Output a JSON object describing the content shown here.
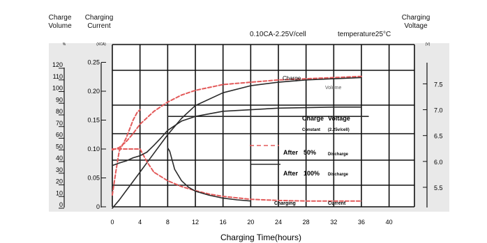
{
  "header": {
    "left_axis_1": "Charge Volume",
    "left_axis_2": "Charging Current",
    "right_axis": "Charging Voltage",
    "condition": "0.10CA-2.25V/cell",
    "temperature": "temperature25°C",
    "unit_volume": "%",
    "unit_current": "(XCA)",
    "unit_voltage": "(V)"
  },
  "chart_data": {
    "type": "line",
    "xlabel": "Charging Time(hours)",
    "x_ticks": [
      0,
      4,
      8,
      12,
      16,
      20,
      24,
      28,
      32,
      36,
      40
    ],
    "xlim": [
      0,
      40
    ],
    "y_volume": {
      "label": "Charge Volume",
      "ticks": [
        0,
        10,
        20,
        30,
        40,
        50,
        60,
        70,
        80,
        90,
        100,
        110,
        120
      ],
      "ylim": [
        0,
        130
      ]
    },
    "y_current": {
      "label": "Charging Current",
      "ticks": [
        0,
        0.05,
        0.1,
        0.15,
        0.2,
        0.25
      ],
      "ylim": [
        0,
        0.27
      ]
    },
    "y_voltage": {
      "label": "Charging Voltage",
      "ticks": [
        5.5,
        6.0,
        6.5,
        7.0,
        7.5
      ],
      "ylim": [
        5.0,
        7.75
      ]
    },
    "grid": true,
    "series": [
      {
        "name": "Charge Volume (after 50% discharge)",
        "axis": "volume",
        "style": "dashed",
        "color": "#e35a5a",
        "x": [
          0,
          1,
          2,
          3,
          4,
          6,
          8,
          10,
          12,
          16,
          20,
          24,
          28,
          32,
          36
        ],
        "y": [
          50,
          52,
          57,
          64,
          72,
          83,
          91,
          97,
          101,
          106,
          108,
          110,
          111,
          112,
          113
        ]
      },
      {
        "name": "Charge Volume (after 100% discharge)",
        "axis": "volume",
        "style": "solid",
        "color": "#2a2a2a",
        "x": [
          0,
          1,
          2,
          3,
          4,
          5,
          6,
          7,
          8,
          10,
          12,
          16,
          20,
          24,
          28,
          32,
          36
        ],
        "y": [
          0,
          7,
          15,
          23,
          31,
          39,
          47,
          55,
          63,
          77,
          88,
          99,
          105,
          108,
          110,
          111,
          112
        ]
      },
      {
        "name": "Charging Current (after 50% discharge)",
        "axis": "current",
        "style": "dashed",
        "color": "#e35a5a",
        "x": [
          0,
          1,
          2,
          3,
          4,
          5,
          6,
          8,
          10,
          12,
          14,
          16,
          20,
          24,
          28,
          32,
          36
        ],
        "y": [
          0.1,
          0.1,
          0.1,
          0.1,
          0.1,
          0.078,
          0.06,
          0.045,
          0.035,
          0.028,
          0.022,
          0.018,
          0.013,
          0.011,
          0.01,
          0.01,
          0.01
        ]
      },
      {
        "name": "Charging Current (after 100% discharge)",
        "axis": "current",
        "style": "solid",
        "color": "#2a2a2a",
        "x": [
          8,
          8.3,
          9,
          10,
          11,
          12,
          14,
          16,
          18,
          20
        ],
        "y": [
          0.102,
          0.096,
          0.065,
          0.045,
          0.034,
          0.027,
          0.02,
          0.015,
          0.012,
          0.01
        ]
      },
      {
        "name": "Charging Voltage (after 50% discharge)",
        "axis": "voltage",
        "style": "dashed",
        "color": "#e35a5a",
        "x": [
          0,
          0.5,
          1,
          2,
          3,
          3.6,
          4
        ],
        "y": [
          5.35,
          5.8,
          6.2,
          6.45,
          6.8,
          6.95,
          7.0
        ]
      },
      {
        "name": "Charging Voltage (after 100% discharge)",
        "axis": "voltage",
        "style": "solid",
        "color": "#2a2a2a",
        "x": [
          0,
          1,
          2,
          3,
          4,
          5,
          6,
          7,
          8,
          10,
          12,
          16,
          20,
          24,
          28,
          32,
          36
        ],
        "y": [
          5.92,
          5.97,
          6.01,
          6.07,
          6.11,
          6.18,
          6.31,
          6.45,
          6.6,
          6.78,
          6.87,
          6.97,
          7.0,
          7.03,
          7.04,
          7.05,
          7.05
        ]
      },
      {
        "name": "Constant voltage 2.25V/cell",
        "axis": "voltage",
        "style": "solid",
        "color": "#2a2a2a",
        "x": [
          8,
          37
        ],
        "y": [
          6.87,
          6.87
        ]
      }
    ],
    "annotations": {
      "volume_1": "Charge",
      "volume_2": "Volume",
      "voltage_1": "Charge",
      "voltage_2": "Voltage",
      "constant_1": "Constant",
      "constant_2": "(2.25v/cell)",
      "legend_50_bold": "After",
      "legend_50_pct": "50%",
      "legend_50_text": "Discharge",
      "legend_100_bold": "After",
      "legend_100_pct": "100%",
      "legend_100_text": "Discharge",
      "current_1": "Charging",
      "current_2": "Current"
    }
  }
}
